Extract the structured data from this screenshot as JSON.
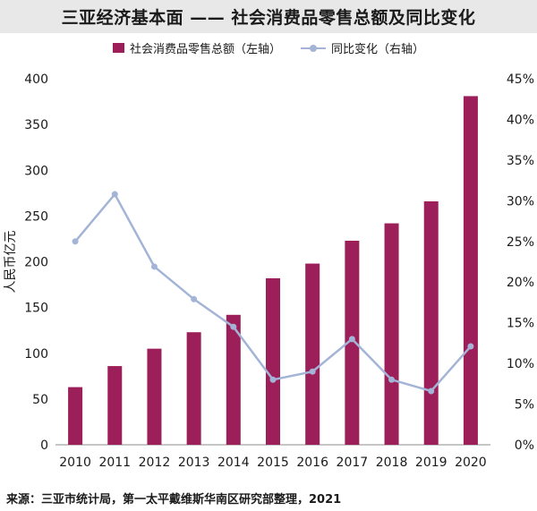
{
  "title": "三亚经济基本面 —— 社会消费品零售总额及同比变化",
  "legend": {
    "bar_label": "社会消费品零售总额（左轴）",
    "line_label": "同比变化（右轴）"
  },
  "source": "来源：三亚市统计局，第一太平戴维斯华南区研究部整理，2021",
  "colors": {
    "bar": "#9c1f5a",
    "line": "#a3b4d6"
  },
  "chart_data": {
    "type": "bar",
    "title": "三亚经济基本面 —— 社会消费品零售总额及同比变化",
    "categories": [
      "2010",
      "2011",
      "2012",
      "2013",
      "2014",
      "2015",
      "2016",
      "2017",
      "2018",
      "2019",
      "2020"
    ],
    "series": [
      {
        "name": "社会消费品零售总额（左轴）",
        "type": "bar",
        "axis": "left",
        "values": [
          63,
          86,
          105,
          123,
          142,
          182,
          198,
          223,
          242,
          266,
          381
        ]
      },
      {
        "name": "同比变化（右轴）",
        "type": "line",
        "axis": "right",
        "values": [
          25,
          30.8,
          21.9,
          17.9,
          14.5,
          8,
          9,
          13,
          8,
          6.6,
          12.1
        ]
      }
    ],
    "ylabel": "人民币亿元",
    "ylim": [
      0,
      400
    ],
    "yticks": [
      "0",
      "50",
      "100",
      "150",
      "200",
      "250",
      "300",
      "350",
      "400"
    ],
    "y2lim": [
      0,
      45
    ],
    "y2ticks": [
      "0%",
      "5%",
      "10%",
      "15%",
      "20%",
      "25%",
      "30%",
      "35%",
      "40%",
      "45%"
    ],
    "grid": false,
    "legend_position": "top"
  }
}
